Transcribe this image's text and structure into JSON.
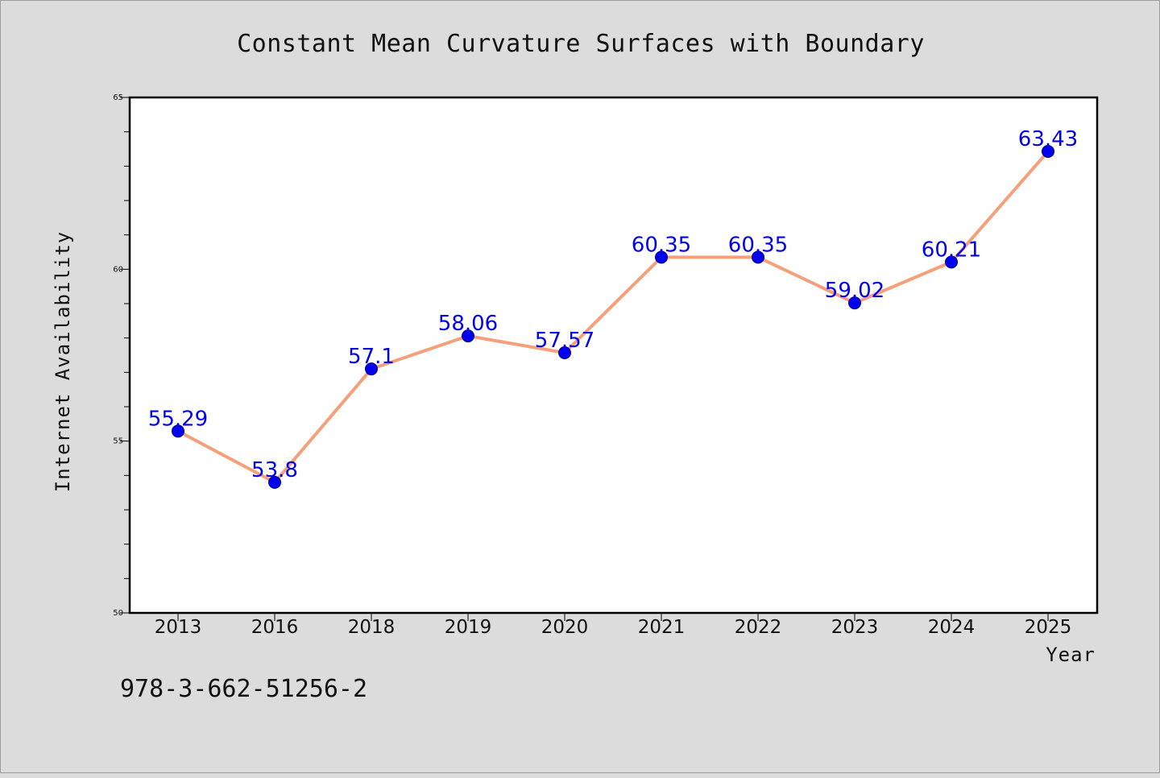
{
  "chart_data": {
    "type": "line",
    "title": "Constant Mean Curvature Surfaces with Boundary",
    "xlabel": "Year",
    "ylabel": "Internet Availability",
    "categories": [
      "2013",
      "2016",
      "2018",
      "2019",
      "2020",
      "2021",
      "2022",
      "2023",
      "2024",
      "2025"
    ],
    "series": [
      {
        "values": [
          55.29,
          53.8,
          57.1,
          58.06,
          57.57,
          60.35,
          60.35,
          59.02,
          60.21,
          63.43
        ],
        "data_labels": [
          "55.29",
          "53.8",
          "57.1",
          "58.06",
          "57.57",
          "60.35",
          "60.35",
          "59.02",
          "60.21",
          "63.43"
        ]
      }
    ],
    "ylim": [
      50,
      65
    ],
    "yticks": [
      50,
      55,
      60,
      65
    ],
    "yticks_minor_step": 1,
    "grid": false,
    "legend": "none",
    "colors": {
      "line": "#f4a07a",
      "marker": "#0000ee",
      "marker_edge": "#000080",
      "data_label": "#0000ee",
      "background": "#dcdcdc",
      "plot_background": "#ffffff"
    }
  },
  "annotation": {
    "isbn": "978-3-662-51256-2"
  }
}
